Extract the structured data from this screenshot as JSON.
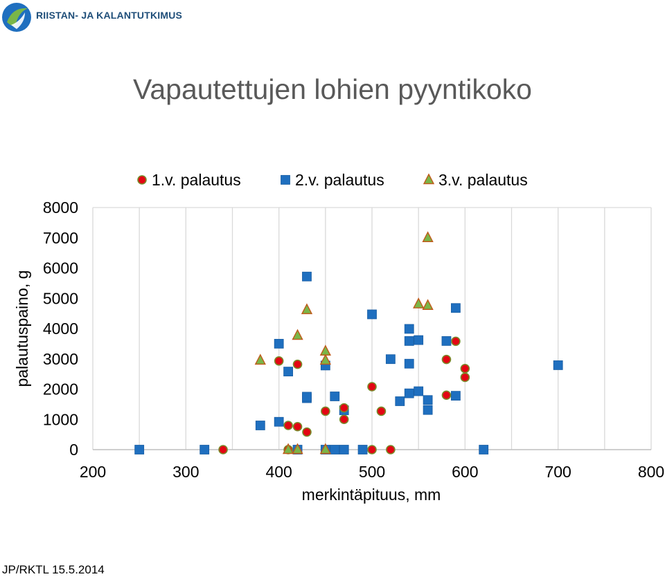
{
  "logo": {
    "text": "RIISTAN- JA KALANTUTKIMUS"
  },
  "title": "Vapautettujen lohien pyyntikoko",
  "footer": "JP/RKTL 15.5.2014",
  "colors": {
    "series1_fill": "#e30613",
    "series1_stroke": "#7a8a2a",
    "series2_fill": "#1f6fbf",
    "series3_fill": "#7ab648",
    "series3_stroke": "#c05a1a",
    "grid": "#d9d9d9",
    "logo_green": "#7ab648",
    "logo_blue": "#1f6fbf"
  },
  "chart_data": {
    "type": "scatter",
    "title": "",
    "xlabel": "merkintäpituus, mm",
    "ylabel": "palautuspaino, g",
    "xlim": [
      200,
      800
    ],
    "ylim": [
      0,
      8000
    ],
    "x_ticks": [
      "200",
      "300",
      "400",
      "500",
      "600",
      "700",
      "800"
    ],
    "y_ticks": [
      "0",
      "1000",
      "2000",
      "3000",
      "4000",
      "5000",
      "6000",
      "7000",
      "8000"
    ],
    "grid": "vertical",
    "legend_position": "top",
    "series": [
      {
        "name": "1.v. palautus",
        "marker": "circle",
        "points": [
          [
            340,
            0
          ],
          [
            400,
            2930
          ],
          [
            410,
            800
          ],
          [
            410,
            0
          ],
          [
            420,
            760
          ],
          [
            420,
            2820
          ],
          [
            430,
            580
          ],
          [
            450,
            1270
          ],
          [
            470,
            1380
          ],
          [
            470,
            1000
          ],
          [
            500,
            2080
          ],
          [
            500,
            0
          ],
          [
            510,
            1270
          ],
          [
            520,
            0
          ],
          [
            580,
            1800
          ],
          [
            580,
            2980
          ],
          [
            590,
            3580
          ],
          [
            600,
            2680
          ],
          [
            600,
            2390
          ]
        ]
      },
      {
        "name": "2.v. palautus",
        "marker": "square",
        "points": [
          [
            250,
            0
          ],
          [
            320,
            0
          ],
          [
            380,
            800
          ],
          [
            400,
            3500
          ],
          [
            400,
            920
          ],
          [
            410,
            2580
          ],
          [
            420,
            0
          ],
          [
            430,
            5720
          ],
          [
            430,
            1700
          ],
          [
            430,
            1750
          ],
          [
            450,
            2780
          ],
          [
            450,
            0
          ],
          [
            460,
            0
          ],
          [
            460,
            1760
          ],
          [
            470,
            1300
          ],
          [
            470,
            0
          ],
          [
            490,
            0
          ],
          [
            500,
            4470
          ],
          [
            520,
            2990
          ],
          [
            530,
            1600
          ],
          [
            540,
            3990
          ],
          [
            540,
            3590
          ],
          [
            540,
            2840
          ],
          [
            540,
            1860
          ],
          [
            550,
            3620
          ],
          [
            550,
            1930
          ],
          [
            560,
            1640
          ],
          [
            560,
            1310
          ],
          [
            580,
            3590
          ],
          [
            590,
            4680
          ],
          [
            590,
            1780
          ],
          [
            620,
            0
          ],
          [
            700,
            2790
          ]
        ]
      },
      {
        "name": "3.v. palautus",
        "marker": "triangle",
        "points": [
          [
            380,
            2950
          ],
          [
            410,
            0
          ],
          [
            420,
            3770
          ],
          [
            420,
            0
          ],
          [
            430,
            4620
          ],
          [
            450,
            3250
          ],
          [
            450,
            2950
          ],
          [
            450,
            0
          ],
          [
            550,
            4810
          ],
          [
            560,
            4760
          ],
          [
            560,
            7000
          ]
        ]
      }
    ]
  }
}
